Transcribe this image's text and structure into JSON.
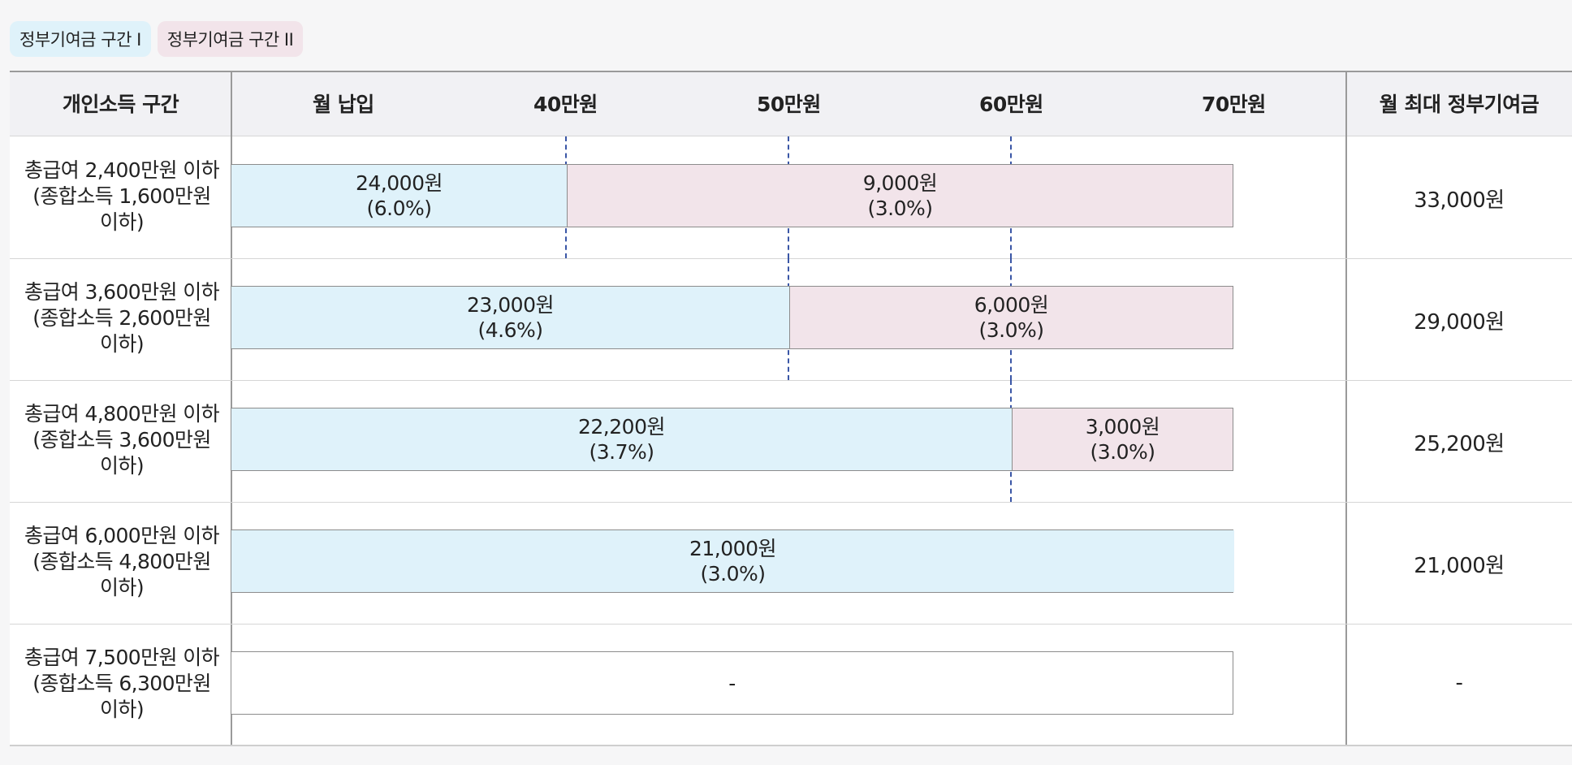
{
  "legend": {
    "tier1": "정부기여금 구간 I",
    "tier2": "정부기여금 구간 II"
  },
  "header": {
    "income_bracket": "개인소득 구간",
    "monthly_payment": "월 납입",
    "tick_40": "40만원",
    "tick_50": "50만원",
    "tick_60": "60만원",
    "tick_70": "70만원",
    "max_contribution": "월 최대 정부기여금"
  },
  "rows": [
    {
      "label": [
        "총급여 2,400만원 이하",
        "(종합소득 1,600만원",
        "이하)"
      ],
      "tier1_amount": "24,000원",
      "tier1_rate": "(6.0%)",
      "tier2_amount": "9,000원",
      "tier2_rate": "(3.0%)",
      "max": "33,000원"
    },
    {
      "label": [
        "총급여 3,600만원 이하",
        "(종합소득 2,600만원",
        "이하)"
      ],
      "tier1_amount": "23,000원",
      "tier1_rate": "(4.6%)",
      "tier2_amount": "6,000원",
      "tier2_rate": "(3.0%)",
      "max": "29,000원"
    },
    {
      "label": [
        "총급여 4,800만원 이하",
        "(종합소득 3,600만원",
        "이하)"
      ],
      "tier1_amount": "22,200원",
      "tier1_rate": "(3.7%)",
      "tier2_amount": "3,000원",
      "tier2_rate": "(3.0%)",
      "max": "25,200원"
    },
    {
      "label": [
        "총급여 6,000만원 이하",
        "(종합소득 4,800만원",
        "이하)"
      ],
      "tier1_amount": "21,000원",
      "tier1_rate": "(3.0%)",
      "max": "21,000원"
    },
    {
      "label": [
        "총급여 7,500만원 이하",
        "(종합소득 6,300만원",
        "이하)"
      ],
      "none_text": "-",
      "max": "-"
    }
  ],
  "colors": {
    "tier1": "#dff2fa",
    "tier2": "#f2e4ea",
    "dashed_line": "#3a56a6"
  },
  "chart_data": {
    "type": "bar",
    "orientation": "horizontal-stacked",
    "x_axis": {
      "label": "월 납입",
      "ticks": [
        40,
        50,
        60,
        70
      ],
      "unit": "만원"
    },
    "categories": [
      "총급여 2,400만원 이하",
      "총급여 3,600만원 이하",
      "총급여 4,800만원 이하",
      "총급여 6,000만원 이하",
      "총급여 7,500만원 이하"
    ],
    "tier1_upper_bound_manwon": [
      40,
      50,
      60,
      70,
      null
    ],
    "tier1_contribution_won": [
      24000,
      23000,
      22200,
      21000,
      null
    ],
    "tier1_rate_pct": [
      6.0,
      4.6,
      3.7,
      3.0,
      null
    ],
    "tier2_contribution_won": [
      9000,
      6000,
      3000,
      null,
      null
    ],
    "tier2_rate_pct": [
      3.0,
      3.0,
      3.0,
      null,
      null
    ],
    "max_contribution_won": [
      33000,
      29000,
      25200,
      21000,
      null
    ]
  }
}
